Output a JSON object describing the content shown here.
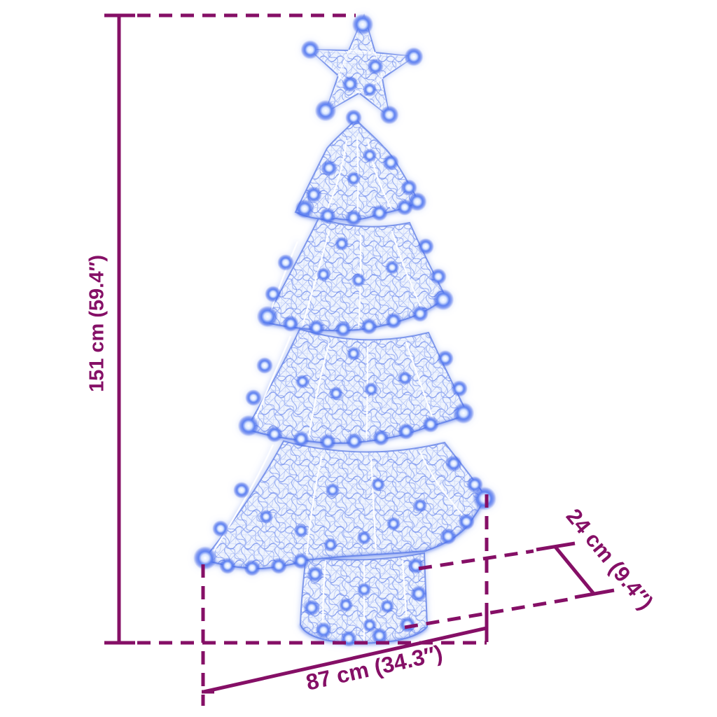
{
  "dimensions": {
    "height": {
      "value": "151 cm (59.4″)"
    },
    "width": {
      "value": "87 cm (34.3″)"
    },
    "depth": {
      "value": "24 cm (9.4″)"
    }
  },
  "colors": {
    "dimension_line": "#850f66",
    "led_blue": "#3d63ea",
    "mesh_blue": "#7e97ef",
    "background": "#ffffff"
  }
}
